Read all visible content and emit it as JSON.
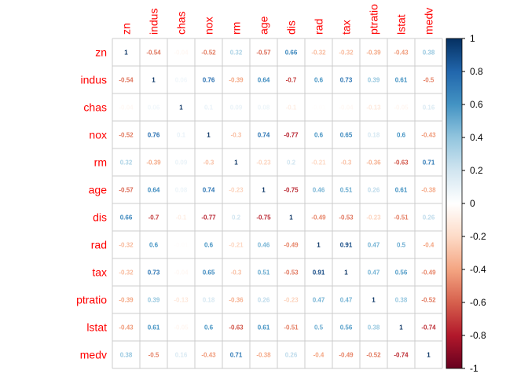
{
  "chart_data": {
    "type": "heatmap",
    "title": "",
    "variables": [
      "zn",
      "indus",
      "chas",
      "nox",
      "rm",
      "age",
      "dis",
      "rad",
      "tax",
      "ptratio",
      "lstat",
      "medv"
    ],
    "matrix": [
      [
        1,
        -0.54,
        -0.04,
        -0.52,
        0.32,
        -0.57,
        0.66,
        -0.32,
        -0.32,
        -0.39,
        -0.43,
        0.38
      ],
      [
        -0.54,
        1,
        0.06,
        0.76,
        -0.39,
        0.64,
        -0.7,
        0.6,
        0.73,
        0.39,
        0.61,
        -0.5
      ],
      [
        -0.04,
        0.06,
        1,
        0.1,
        0.09,
        0.08,
        -0.1,
        -0.01,
        -0.04,
        -0.13,
        -0.05,
        0.16
      ],
      [
        -0.52,
        0.76,
        0.1,
        1,
        -0.3,
        0.74,
        -0.77,
        0.6,
        0.65,
        0.18,
        0.6,
        -0.43
      ],
      [
        0.32,
        -0.39,
        0.09,
        -0.3,
        1,
        -0.23,
        0.2,
        -0.21,
        -0.3,
        -0.36,
        -0.63,
        0.71
      ],
      [
        -0.57,
        0.64,
        0.08,
        0.74,
        -0.23,
        1,
        -0.75,
        0.46,
        0.51,
        0.26,
        0.61,
        -0.38
      ],
      [
        0.66,
        -0.7,
        -0.1,
        -0.77,
        0.2,
        -0.75,
        1,
        -0.49,
        -0.53,
        -0.23,
        -0.51,
        0.26
      ],
      [
        -0.32,
        0.6,
        -0.01,
        0.6,
        -0.21,
        0.46,
        -0.49,
        1,
        0.91,
        0.47,
        0.5,
        -0.4
      ],
      [
        -0.32,
        0.73,
        -0.04,
        0.65,
        -0.3,
        0.51,
        -0.53,
        0.91,
        1,
        0.47,
        0.56,
        -0.49
      ],
      [
        -0.39,
        0.39,
        -0.13,
        0.18,
        -0.36,
        0.26,
        -0.23,
        0.47,
        0.47,
        1,
        0.38,
        -0.52
      ],
      [
        -0.43,
        0.61,
        -0.05,
        0.6,
        -0.63,
        0.61,
        -0.51,
        0.5,
        0.56,
        0.38,
        1,
        -0.74
      ],
      [
        0.38,
        -0.5,
        0.16,
        -0.43,
        0.71,
        -0.38,
        0.26,
        -0.4,
        -0.49,
        -0.52,
        -0.74,
        1
      ]
    ],
    "colorbar": {
      "range": [
        -1,
        1
      ],
      "ticks": [
        "1",
        "0.8",
        "0.6",
        "0.4",
        "0.2",
        "0",
        "-0.2",
        "-0.4",
        "-0.6",
        "-0.8",
        "-1"
      ]
    },
    "label_color": "#ff0000",
    "palette": [
      "#67001F",
      "#B2182B",
      "#D6604D",
      "#F4A582",
      "#FDDBC7",
      "#FFFFFF",
      "#D1E5F0",
      "#92C5DE",
      "#4393C3",
      "#2166AC",
      "#053061"
    ]
  }
}
